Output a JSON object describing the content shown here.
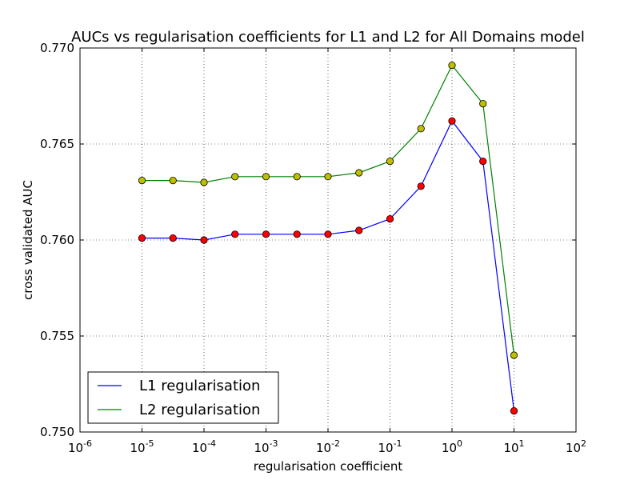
{
  "chart_data": {
    "type": "line",
    "title": "AUCs vs regularisation coefficients for L1 and L2 for All Domains model",
    "xlabel": "regularisation coefficient",
    "ylabel": "cross validated AUC",
    "xscale": "log",
    "xlim": [
      1e-06,
      100
    ],
    "ylim": [
      0.75,
      0.77
    ],
    "x_ticks": [
      {
        "base": "10",
        "exp": "-6",
        "value": 1e-06
      },
      {
        "base": "10",
        "exp": "-5",
        "value": 1e-05
      },
      {
        "base": "10",
        "exp": "-4",
        "value": 0.0001
      },
      {
        "base": "10",
        "exp": "-3",
        "value": 0.001
      },
      {
        "base": "10",
        "exp": "-2",
        "value": 0.01
      },
      {
        "base": "10",
        "exp": "-1",
        "value": 0.1
      },
      {
        "base": "10",
        "exp": "0",
        "value": 1
      },
      {
        "base": "10",
        "exp": "1",
        "value": 10
      },
      {
        "base": "10",
        "exp": "2",
        "value": 100
      }
    ],
    "y_ticks": [
      {
        "label": "0.750",
        "value": 0.75
      },
      {
        "label": "0.755",
        "value": 0.755
      },
      {
        "label": "0.760",
        "value": 0.76
      },
      {
        "label": "0.765",
        "value": 0.765
      },
      {
        "label": "0.770",
        "value": 0.77
      }
    ],
    "grid": true,
    "legend_position": "bottom-left",
    "x": [
      1e-05,
      3.16e-05,
      0.0001,
      0.000316,
      0.001,
      0.00316,
      0.01,
      0.0316,
      0.1,
      0.316,
      1,
      3.16,
      10
    ],
    "series": [
      {
        "name": "L1 regularisation",
        "line_color": "#0000ff",
        "marker_color": "#ff0000",
        "values": [
          0.7601,
          0.7601,
          0.76,
          0.7603,
          0.7603,
          0.7603,
          0.7603,
          0.7605,
          0.7611,
          0.7628,
          0.7662,
          0.7641,
          0.7511
        ]
      },
      {
        "name": "L2 regularisation",
        "line_color": "#008000",
        "marker_color": "#bfbf00",
        "values": [
          0.7631,
          0.7631,
          0.763,
          0.7633,
          0.7633,
          0.7633,
          0.7633,
          0.7635,
          0.7641,
          0.7658,
          0.7691,
          0.7671,
          0.754
        ]
      }
    ]
  }
}
